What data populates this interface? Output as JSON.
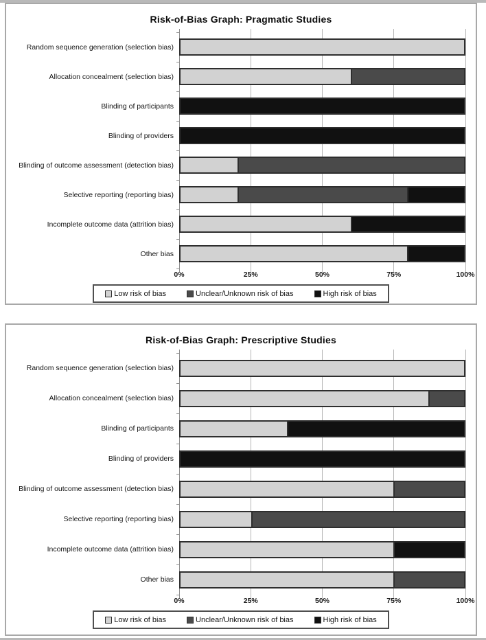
{
  "page": {
    "strip_color": "#b9b9b9"
  },
  "colors": {
    "low": "#d2d2d2",
    "unclear": "#4a4a4a",
    "high": "#111111",
    "bar_border": "#2e2e2e",
    "gridline": "#b5b5b5",
    "axis_line": "#8f8f8f"
  },
  "chart_data": [
    {
      "type": "bar",
      "orientation": "horizontal",
      "stacked": true,
      "title": "Risk-of-Bias Graph: Pragmatic Studies",
      "categories": [
        "Random sequence generation (selection bias)",
        "Allocation concealment (selection bias)",
        "Blinding of participants",
        "Blinding of providers",
        "Blinding of outcome assessment (detection bias)",
        "Selective reporting (reporting bias)",
        "Incomplete outcome data (attrition bias)",
        "Other bias"
      ],
      "series": [
        {
          "name": "Low risk of bias",
          "color": "#d2d2d2",
          "values": [
            100,
            60,
            0,
            0,
            20,
            20,
            60,
            80
          ]
        },
        {
          "name": "Unclear/Unknown risk of bias",
          "color": "#4a4a4a",
          "values": [
            0,
            40,
            0,
            0,
            80,
            60,
            0,
            0
          ]
        },
        {
          "name": "High risk of bias",
          "color": "#111111",
          "values": [
            0,
            0,
            100,
            100,
            0,
            20,
            40,
            20
          ]
        }
      ],
      "xlim": [
        0,
        100
      ],
      "x_ticks": [
        "0%",
        "25%",
        "50%",
        "75%",
        "100%"
      ],
      "grid": true,
      "legend_position": "bottom"
    },
    {
      "type": "bar",
      "orientation": "horizontal",
      "stacked": true,
      "title": "Risk-of-Bias Graph: Prescriptive Studies",
      "categories": [
        "Random sequence generation (selection bias)",
        "Allocation concealment (selection bias)",
        "Blinding of participants",
        "Blinding of providers",
        "Blinding of outcome assessment (detection bias)",
        "Selective reporting (reporting bias)",
        "Incomplete outcome data (attrition bias)",
        "Other bias"
      ],
      "series": [
        {
          "name": "Low risk of bias",
          "color": "#d2d2d2",
          "values": [
            100,
            87.5,
            37.5,
            0,
            75,
            25,
            75,
            75
          ]
        },
        {
          "name": "Unclear/Unknown risk of bias",
          "color": "#4a4a4a",
          "values": [
            0,
            12.5,
            0,
            0,
            25,
            75,
            0,
            25
          ]
        },
        {
          "name": "High risk of bias",
          "color": "#111111",
          "values": [
            0,
            0,
            62.5,
            100,
            0,
            0,
            25,
            0
          ]
        }
      ],
      "xlim": [
        0,
        100
      ],
      "x_ticks": [
        "0%",
        "25%",
        "50%",
        "75%",
        "100%"
      ],
      "grid": true,
      "legend_position": "bottom"
    }
  ]
}
